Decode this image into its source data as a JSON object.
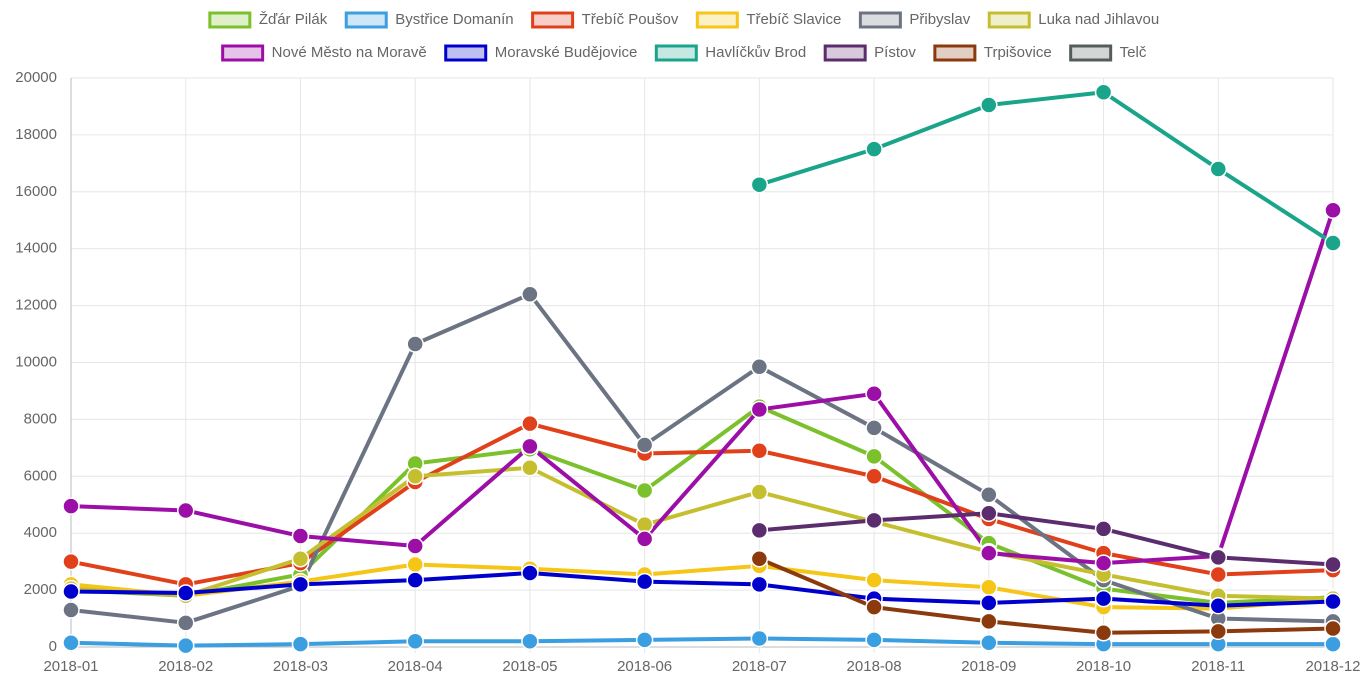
{
  "chart_data": {
    "type": "line",
    "x": [
      "2018-01",
      "2018-02",
      "2018-03",
      "2018-04",
      "2018-05",
      "2018-06",
      "2018-07",
      "2018-08",
      "2018-09",
      "2018-10",
      "2018-11",
      "2018-12"
    ],
    "ylim": [
      0,
      20000
    ],
    "yticks": [
      0,
      2000,
      4000,
      6000,
      8000,
      10000,
      12000,
      14000,
      16000,
      18000,
      20000
    ],
    "grid": true,
    "legend": "top",
    "series": [
      {
        "name": "Žďár Pilák",
        "color": "#7bc12c",
        "values": [
          2000,
          1800,
          2550,
          6450,
          6950,
          5500,
          8450,
          6700,
          3650,
          2050,
          1550,
          1750
        ]
      },
      {
        "name": "Bystřice Domanín",
        "color": "#3a9ee0",
        "values": [
          150,
          50,
          100,
          200,
          200,
          250,
          300,
          250,
          150,
          100,
          100,
          100
        ]
      },
      {
        "name": "Třebíč Poušov",
        "color": "#e0401a",
        "values": [
          3000,
          2200,
          2950,
          5800,
          7850,
          6800,
          6900,
          6000,
          4500,
          3300,
          2550,
          2700
        ]
      },
      {
        "name": "Třebíč Slavice",
        "color": "#f5c518",
        "values": [
          2200,
          1800,
          2300,
          2900,
          2750,
          2550,
          2850,
          2350,
          2100,
          1400,
          1350,
          1700
        ]
      },
      {
        "name": "Přibyslav",
        "color": "#6c7382",
        "values": [
          1300,
          850,
          2150,
          10650,
          12400,
          7100,
          9850,
          7700,
          5350,
          2350,
          1000,
          900
        ]
      },
      {
        "name": "Luka nad Jihlavou",
        "color": "#c5bf30",
        "values": [
          2050,
          1800,
          3100,
          6000,
          6300,
          4300,
          5450,
          4400,
          3350,
          2550,
          1800,
          1700
        ]
      },
      {
        "name": "Nové Město na Moravě",
        "color": "#9c0fa6",
        "values": [
          4950,
          4800,
          3900,
          3550,
          7050,
          3800,
          8350,
          8900,
          3300,
          2950,
          3200,
          15350
        ]
      },
      {
        "name": "Moravské Budějovice",
        "color": "#0000cc",
        "values": [
          1950,
          1900,
          2200,
          2350,
          2600,
          2300,
          2200,
          1700,
          1550,
          1700,
          1450,
          1600
        ]
      },
      {
        "name": "Havlíčkův Brod",
        "color": "#1aa58a",
        "values": [
          null,
          null,
          null,
          null,
          null,
          null,
          16250,
          17500,
          19050,
          19500,
          16800,
          14200
        ]
      },
      {
        "name": "Pístov",
        "color": "#5b2d6e",
        "values": [
          null,
          null,
          null,
          null,
          null,
          null,
          4100,
          4450,
          4700,
          4150,
          3150,
          2900
        ]
      },
      {
        "name": "Trpišovice",
        "color": "#8b3a0e",
        "values": [
          null,
          null,
          null,
          null,
          null,
          null,
          3100,
          1400,
          900,
          500,
          550,
          650
        ]
      },
      {
        "name": "Telč",
        "color": "#555d5a",
        "values": [
          null,
          null,
          null,
          null,
          null,
          null,
          null,
          null,
          null,
          null,
          null,
          null
        ]
      }
    ]
  }
}
